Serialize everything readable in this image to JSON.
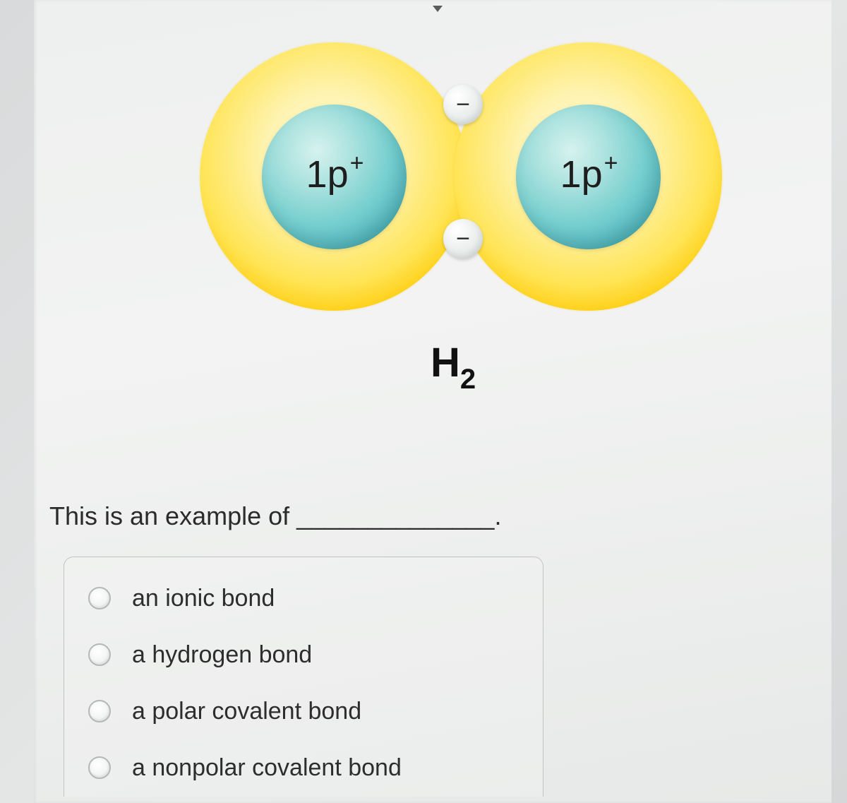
{
  "diagram": {
    "molecule_label_html": "H<sub>2</sub>",
    "atoms": [
      {
        "nucleus_label_html": "1p<sup>+</sup>"
      },
      {
        "nucleus_label_html": "1p<sup>+</sup>"
      }
    ],
    "electrons": [
      {
        "charge": "−"
      },
      {
        "charge": "−"
      }
    ],
    "colors": {
      "shell_outer": "#f4bf00",
      "shell_inner": "#fff9d5",
      "nucleus_light": "#aee3df",
      "nucleus_dark": "#2f97a3",
      "electron_fill": "#e3e8e6",
      "background": "#eef0ef"
    }
  },
  "question": {
    "stem": "This is an example of ______________.",
    "options": [
      "an ionic bond",
      "a hydrogen bond",
      "a polar covalent bond",
      "a nonpolar covalent bond"
    ]
  }
}
